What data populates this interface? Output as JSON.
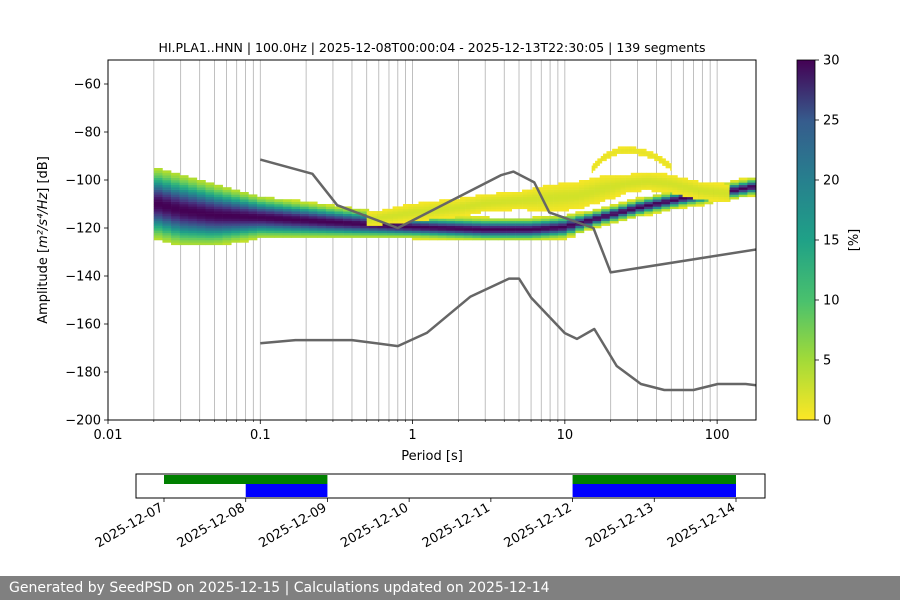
{
  "chart_data": {
    "type": "heatmap",
    "title": "HI.PLA1..HNN | 100.0Hz | 2025-12-08T00:00:04 - 2025-12-13T22:30:05 | 139 segments",
    "xlabel": "Period [s]",
    "ylabel_prefix": "Amplitude [",
    "ylabel_unit": "m²/s⁴/Hz",
    "ylabel_suffix": "] [dB]",
    "xscale": "log",
    "xlim": [
      0.01,
      180
    ],
    "ylim": [
      -200,
      -50
    ],
    "xticks": [
      0.01,
      0.1,
      1,
      10,
      100
    ],
    "xtick_labels": [
      "0.01",
      "0.1",
      "1",
      "10",
      "100"
    ],
    "yticks": [
      -200,
      -180,
      -160,
      -140,
      -120,
      -100,
      -80,
      -60
    ],
    "ytick_labels": [
      "−200",
      "−180",
      "−160",
      "−140",
      "−120",
      "−100",
      "−80",
      "−60"
    ],
    "grid": "vertical",
    "colorbar": {
      "label": "[%]",
      "colormap": "viridis_r",
      "range": [
        0,
        30
      ],
      "ticks": [
        0,
        5,
        10,
        15,
        20,
        25,
        30
      ],
      "tick_labels": [
        "0",
        "5",
        "10",
        "15",
        "20",
        "25",
        "30"
      ]
    },
    "nhnm": {
      "name": "NHNM",
      "period": [
        0.1,
        0.22,
        0.32,
        0.8,
        3.8,
        4.6,
        6.3,
        7.9,
        15.4,
        20,
        354.8
      ],
      "db": [
        -91.5,
        -97.4,
        -110.5,
        -120,
        -98,
        -96.5,
        -101,
        -113.5,
        -120,
        -138.5,
        -126
      ]
    },
    "nlnm": {
      "name": "NLNM",
      "period": [
        0.1,
        0.17,
        0.4,
        0.8,
        1.24,
        2.4,
        4.3,
        5,
        6,
        10,
        12,
        15.6,
        21.9,
        31.6,
        45,
        70,
        101,
        154,
        328
      ],
      "db": [
        -168,
        -166.7,
        -166.7,
        -169.2,
        -163.7,
        -148.6,
        -141.1,
        -141.1,
        -149,
        -163.8,
        -166.2,
        -162.1,
        -177.5,
        -185,
        -187.5,
        -187.5,
        -185,
        -185,
        -187.5
      ]
    },
    "density_bands": [
      {
        "name": "mode",
        "period": [
          0.02,
          0.03,
          0.05,
          0.1,
          0.3,
          1,
          3,
          6,
          10,
          15,
          30,
          60,
          100,
          180
        ],
        "db": [
          -110,
          -113,
          -115,
          -116,
          -118,
          -120,
          -121,
          -121,
          -120,
          -117,
          -112,
          -108,
          -106,
          -103
        ],
        "spread": [
          7,
          7,
          6,
          4,
          3,
          2,
          2,
          2,
          2,
          1.5,
          1.5,
          1.5,
          1.5,
          1.5
        ],
        "max_percent": 30
      },
      {
        "name": "upper-yellow",
        "period": [
          0.5,
          1,
          2,
          3,
          5,
          8,
          12,
          18,
          25,
          35,
          50,
          80,
          120
        ],
        "db": [
          -117,
          -114,
          -112,
          -110,
          -109,
          -108,
          -107,
          -104,
          -102,
          -101,
          -102,
          -105,
          -106
        ],
        "spread": [
          1.5,
          2,
          2,
          2,
          2,
          3,
          3,
          3,
          2,
          2,
          2,
          2,
          2
        ],
        "max_percent": 2
      },
      {
        "name": "hump",
        "period": [
          15,
          18,
          22,
          27,
          33,
          40,
          50
        ],
        "db": [
          -96,
          -91,
          -88.5,
          -88,
          -89,
          -91,
          -95
        ],
        "spread": [
          1,
          1,
          1,
          1,
          1,
          1,
          1
        ],
        "max_percent": 1
      }
    ]
  },
  "timeline": {
    "date_labels": [
      "2025-12-07",
      "2025-12-08",
      "2025-12-09",
      "2025-12-10",
      "2025-12-11",
      "2025-12-12",
      "2025-12-13",
      "2025-12-14"
    ],
    "green_segments": [
      [
        "2025-12-07",
        "2025-12-09"
      ],
      [
        "2025-12-12",
        "2025-12-14"
      ]
    ],
    "blue_segments": [
      [
        "2025-12-08",
        "2025-12-09"
      ],
      [
        "2025-12-12",
        "2025-12-14"
      ]
    ],
    "colors": {
      "green": "#008000",
      "blue": "#0000ff"
    }
  },
  "footer": {
    "text": "Generated by SeedPSD on 2025-12-15 | Calculations updated on 2025-12-14",
    "background": "#808080"
  }
}
